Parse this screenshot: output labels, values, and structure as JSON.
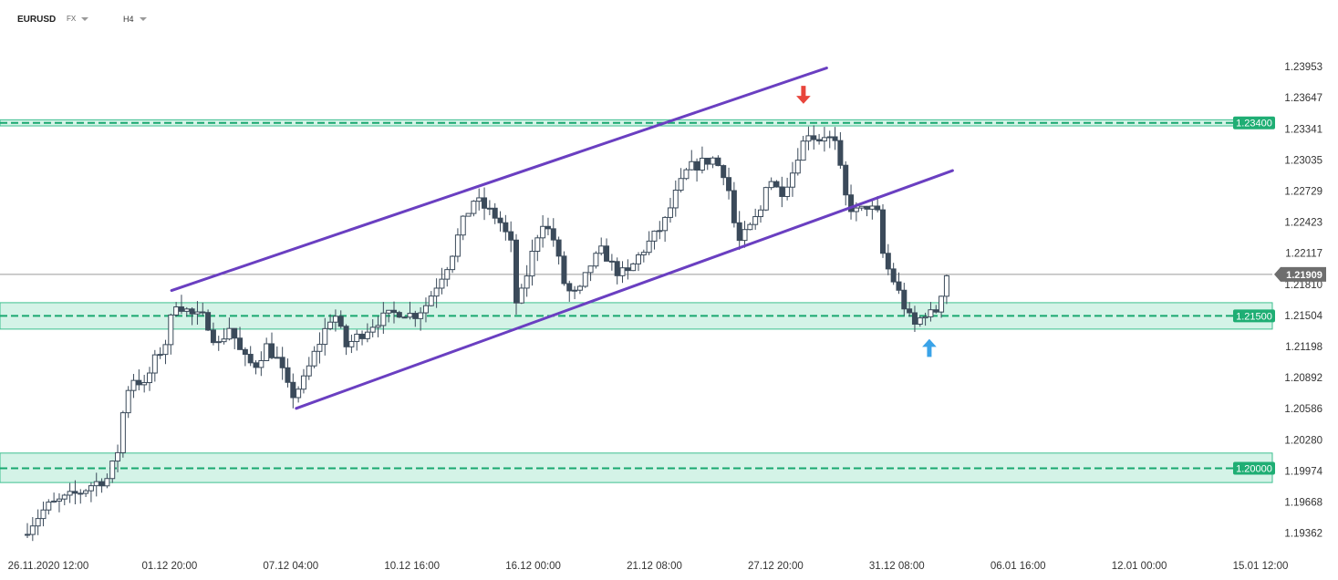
{
  "header": {
    "symbol": "EURUSD",
    "market": "FX",
    "timeframe": "H4"
  },
  "chart_data": {
    "type": "candlestick",
    "title": "",
    "xlabel": "",
    "ylabel": "",
    "ylim": [
      1.1917,
      1.2425
    ],
    "y_ticks": [
      "1.23953",
      "1.23647",
      "1.23341",
      "1.23035",
      "1.22729",
      "1.22423",
      "1.22117",
      "1.21810",
      "1.21504",
      "1.21198",
      "1.20892",
      "1.20586",
      "1.20280",
      "1.19974",
      "1.19668",
      "1.19362"
    ],
    "x_ticks": [
      "26.11.2020  12:00",
      "01.12  20:00",
      "07.12  04:00",
      "10.12  16:00",
      "16.12  00:00",
      "21.12  08:00",
      "27.12  20:00",
      "31.12  08:00",
      "06.01  16:00",
      "12.01  00:00",
      "15.01  12:00"
    ],
    "current_price": "1.21909",
    "levels": [
      {
        "label": "1.23400",
        "value": 1.234,
        "zone": [
          1.2337,
          1.2343
        ]
      },
      {
        "label": "1.21500",
        "value": 1.215,
        "zone": [
          1.2137,
          1.2163
        ]
      },
      {
        "label": "1.20000",
        "value": 1.2,
        "zone": [
          1.1986,
          1.2015
        ]
      }
    ],
    "channel": {
      "upper": [
        [
          0.118,
          1.2175
        ],
        [
          0.654,
          1.2394
        ]
      ],
      "lower": [
        [
          0.22,
          1.2059
        ],
        [
          0.757,
          1.2293
        ]
      ]
    },
    "markers": [
      {
        "type": "arrow-down",
        "x": 0.635,
        "y": 1.2367,
        "color": "#e8453c"
      },
      {
        "type": "arrow-up",
        "x": 0.738,
        "y": 1.2119,
        "color": "#3aa3e8"
      }
    ],
    "anchors": [
      [
        0.0,
        1.1935
      ],
      [
        0.02,
        1.1962
      ],
      [
        0.035,
        1.197
      ],
      [
        0.05,
        1.1978
      ],
      [
        0.058,
        1.1985
      ],
      [
        0.07,
        1.199
      ],
      [
        0.078,
        1.2015
      ],
      [
        0.085,
        1.2075
      ],
      [
        0.092,
        1.209
      ],
      [
        0.1,
        1.208
      ],
      [
        0.108,
        1.2105
      ],
      [
        0.118,
        1.2125
      ],
      [
        0.125,
        1.2165
      ],
      [
        0.14,
        1.215
      ],
      [
        0.15,
        1.2148
      ],
      [
        0.16,
        1.212
      ],
      [
        0.17,
        1.214
      ],
      [
        0.18,
        1.211
      ],
      [
        0.19,
        1.21
      ],
      [
        0.2,
        1.212
      ],
      [
        0.21,
        1.2105
      ],
      [
        0.22,
        1.207
      ],
      [
        0.23,
        1.2085
      ],
      [
        0.24,
        1.2115
      ],
      [
        0.255,
        1.2155
      ],
      [
        0.265,
        1.212
      ],
      [
        0.275,
        1.213
      ],
      [
        0.29,
        1.2145
      ],
      [
        0.3,
        1.215
      ],
      [
        0.31,
        1.2155
      ],
      [
        0.32,
        1.215
      ],
      [
        0.33,
        1.216
      ],
      [
        0.35,
        1.2205
      ],
      [
        0.36,
        1.224
      ],
      [
        0.37,
        1.2265
      ],
      [
        0.38,
        1.2255
      ],
      [
        0.39,
        1.2245
      ],
      [
        0.4,
        1.222
      ],
      [
        0.405,
        1.2155
      ],
      [
        0.415,
        1.22
      ],
      [
        0.425,
        1.2245
      ],
      [
        0.435,
        1.2225
      ],
      [
        0.445,
        1.2175
      ],
      [
        0.455,
        1.217
      ],
      [
        0.465,
        1.22
      ],
      [
        0.475,
        1.2215
      ],
      [
        0.485,
        1.2195
      ],
      [
        0.495,
        1.219
      ],
      [
        0.505,
        1.221
      ],
      [
        0.515,
        1.2225
      ],
      [
        0.525,
        1.224
      ],
      [
        0.535,
        1.227
      ],
      [
        0.545,
        1.2295
      ],
      [
        0.555,
        1.23
      ],
      [
        0.565,
        1.2305
      ],
      [
        0.575,
        1.229
      ],
      [
        0.58,
        1.2265
      ],
      [
        0.585,
        1.222
      ],
      [
        0.595,
        1.2235
      ],
      [
        0.605,
        1.2255
      ],
      [
        0.61,
        1.229
      ],
      [
        0.62,
        1.227
      ],
      [
        0.63,
        1.229
      ],
      [
        0.635,
        1.231
      ],
      [
        0.645,
        1.2335
      ],
      [
        0.65,
        1.232
      ],
      [
        0.655,
        1.233
      ],
      [
        0.665,
        1.232
      ],
      [
        0.675,
        1.226
      ],
      [
        0.685,
        1.225
      ],
      [
        0.69,
        1.226
      ],
      [
        0.7,
        1.225
      ],
      [
        0.705,
        1.2205
      ],
      [
        0.715,
        1.218
      ],
      [
        0.72,
        1.2165
      ],
      [
        0.725,
        1.215
      ],
      [
        0.73,
        1.214
      ],
      [
        0.74,
        1.2155
      ],
      [
        0.745,
        1.215
      ],
      [
        0.75,
        1.216
      ],
      [
        0.755,
        1.2191
      ]
    ]
  }
}
